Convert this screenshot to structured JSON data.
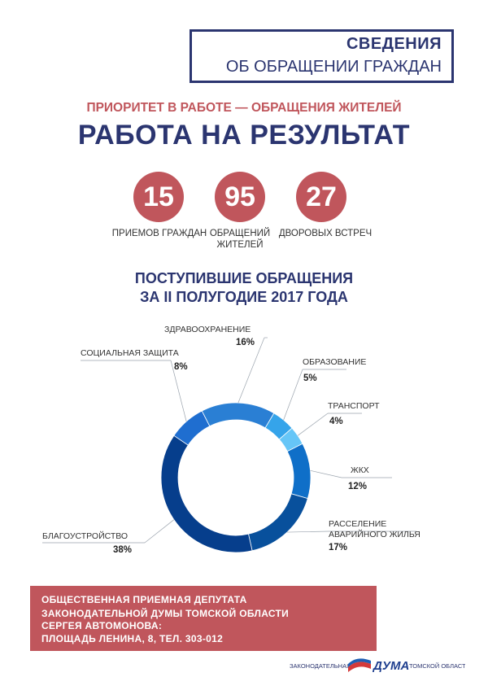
{
  "header": {
    "title_line1": "СВЕДЕНИЯ",
    "title_line2": "ОБ ОБРАЩЕНИИ ГРАЖДАН",
    "subtitle": "ПРИОРИТЕТ В РАБОТЕ — ОБРАЩЕНИЯ ЖИТЕЛЕЙ",
    "headline": "РАБОТА НА РЕЗУЛЬТАТ"
  },
  "stats": [
    {
      "value": "15",
      "label1": "ПРИЕМОВ ГРАЖДАН",
      "label2": ""
    },
    {
      "value": "95",
      "label1": "ОБРАЩЕНИЙ",
      "label2": "ЖИТЕЛЕЙ"
    },
    {
      "value": "27",
      "label1": "ДВОРОВЫХ ВСТРЕЧ",
      "label2": ""
    }
  ],
  "section_title_line1": "ПОСТУПИВШИЕ ОБРАЩЕНИЯ",
  "section_title_line2": "ЗА II ПОЛУГОДИЕ 2017 ГОДА",
  "chart_data": {
    "type": "pie",
    "donut": true,
    "categories": [
      "ЗДРАВООХРАНЕНИЕ",
      "ОБРАЗОВАНИЕ",
      "ТРАНСПОРТ",
      "ЖКХ",
      "РАССЕЛЕНИЕ АВАРИЙНОГО ЖИЛЬЯ",
      "БЛАГОУСТРОЙСТВО",
      "СОЦИАЛЬНАЯ ЗАЩИТА"
    ],
    "values": [
      16,
      5,
      4,
      12,
      17,
      38,
      8
    ],
    "value_labels": [
      "16%",
      "5%",
      "4%",
      "12%",
      "17%",
      "38%",
      "8%"
    ],
    "label_lines": [
      [
        "ЗДРАВООХРАНЕНИЕ"
      ],
      [
        "ОБРАЗОВАНИЕ"
      ],
      [
        "ТРАНСПОРТ"
      ],
      [
        "ЖКХ"
      ],
      [
        "РАССЕЛЕНИЕ",
        "АВАРИЙНОГО ЖИЛЬЯ"
      ],
      [
        "БЛАГОУСТРОЙСТВО"
      ],
      [
        "СОЦИАЛЬНАЯ ЗАЩИТА"
      ]
    ],
    "colors": [
      "#2a7fd4",
      "#35a4ea",
      "#66c6f7",
      "#0f6fc8",
      "#08509c",
      "#063e8c",
      "#1f6ed0"
    ]
  },
  "footer": {
    "lines": [
      "ОБЩЕСТВЕННАЯ ПРИЕМНАЯ ДЕПУТАТА",
      "ЗАКОНОДАТЕЛЬНОЙ ДУМЫ ТОМСКОЙ ОБЛАСТИ",
      "СЕРГЕЯ АВТОМОНОВА:",
      "ПЛОЩАДЬ ЛЕНИНА, 8, ТЕЛ. 303-012"
    ]
  },
  "logo": {
    "left_text": "ЗАКОНОДАТЕЛЬНАЯ",
    "center_text": "ДУМА",
    "right_text": "ТОМСКОЙ ОБЛАСТИ"
  }
}
